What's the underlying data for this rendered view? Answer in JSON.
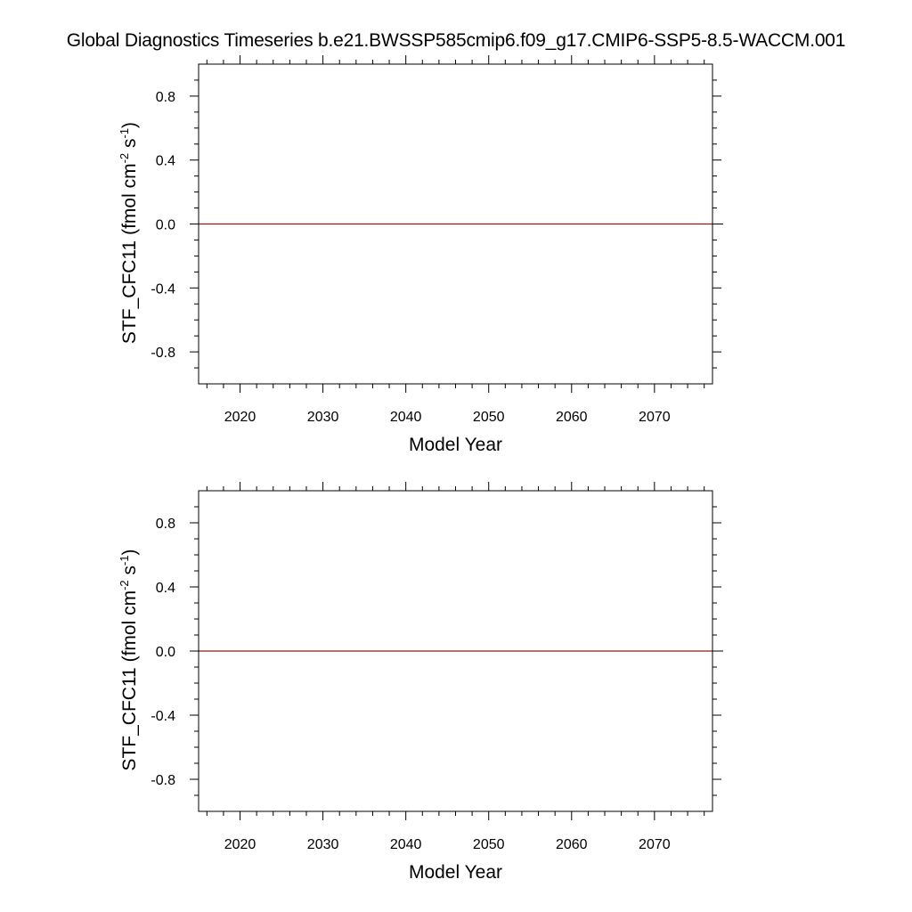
{
  "title": "Global Diagnostics Timeseries b.e21.BWSSP585cmip6.f09_g17.CMIP6-SSP5-8.5-WACCM.001",
  "colors": {
    "axes": "#000000",
    "series": "#8b1a1a",
    "background": "#ffffff"
  },
  "chart_data": [
    {
      "type": "line",
      "xlabel": "Model Year",
      "ylabel": {
        "main": "STF_CFC11 (fmol cm",
        "exp1": "-2",
        "mid": " s",
        "exp2": "-1",
        "close": ")"
      },
      "xlim": [
        2015,
        2077
      ],
      "ylim": [
        -1.0,
        1.0
      ],
      "x_ticks": [
        "2020",
        "2030",
        "2040",
        "2050",
        "2060",
        "2070"
      ],
      "y_ticks": [
        "0.8",
        "0.4",
        "0.0",
        "-0.4",
        "-0.8"
      ],
      "grid": false,
      "series": [
        {
          "x": [
            2015,
            2077
          ],
          "y": [
            0.0,
            0.0
          ]
        }
      ]
    },
    {
      "type": "line",
      "xlabel": "Model Year",
      "ylabel": {
        "main": "STF_CFC11 (fmol cm",
        "exp1": "-2",
        "mid": " s",
        "exp2": "-1",
        "close": ")"
      },
      "xlim": [
        2015,
        2077
      ],
      "ylim": [
        -1.0,
        1.0
      ],
      "x_ticks": [
        "2020",
        "2030",
        "2040",
        "2050",
        "2060",
        "2070"
      ],
      "y_ticks": [
        "0.8",
        "0.4",
        "0.0",
        "-0.4",
        "-0.8"
      ],
      "grid": false,
      "series": [
        {
          "x": [
            2015,
            2077
          ],
          "y": [
            0.0,
            0.0
          ]
        }
      ]
    }
  ]
}
